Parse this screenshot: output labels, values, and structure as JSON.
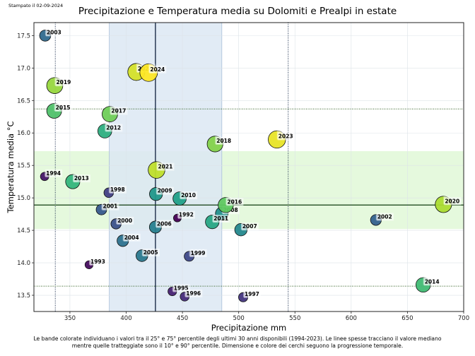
{
  "header": {
    "stamp": "Stampato il 02-09-2024"
  },
  "caption": {
    "line1": "Le bande colorate individuano i valori tra il 25° e 75° percentile degli ultimi 30 anni disponibili (1994-2023). Le linee spesse tracciano il valore mediano",
    "line2": "mentre quelle tratteggiate sono il 10° e 90° percentile. Dimensione e colore dei cerchi seguono la progressione temporale."
  },
  "chart_data": {
    "type": "scatter",
    "title": "Precipitazione e Temperatura media su Dolomiti e Prealpi in estate",
    "xlabel": "Precipitazione mm",
    "ylabel": "Temperatura media °C",
    "xlim": [
      318,
      700
    ],
    "ylim": [
      13.25,
      17.7
    ],
    "xticks": [
      350,
      400,
      450,
      500,
      550,
      600,
      650,
      700
    ],
    "yticks": [
      13.5,
      14.0,
      14.5,
      15.0,
      15.5,
      16.0,
      16.5,
      17.0,
      17.5
    ],
    "ytick_labels": [
      "13.5",
      "14.0",
      "14.5",
      "15.0",
      "15.5",
      "16.0",
      "16.5",
      "17.0",
      "17.5"
    ],
    "grid": true,
    "colormap": "viridis",
    "reference": {
      "x_p25": 385,
      "x_p75": 485,
      "x_median": 426,
      "x_p10": 337,
      "x_p90": 544,
      "y_p25": 14.52,
      "y_p75": 15.72,
      "y_median": 14.89,
      "y_p10": 13.64,
      "y_p90": 16.37,
      "x_band_color": "#dce7f3",
      "y_band_color": "#e2f8d9",
      "x_median_color": "#0d1f3c",
      "y_median_color": "#0f3d0f"
    },
    "points": [
      {
        "year": 1992,
        "x": 445.5,
        "y": 14.69
      },
      {
        "year": 1993,
        "x": 367,
        "y": 13.97
      },
      {
        "year": 1994,
        "x": 327.5,
        "y": 15.33
      },
      {
        "year": 1995,
        "x": 441,
        "y": 13.56
      },
      {
        "year": 1996,
        "x": 452,
        "y": 13.48
      },
      {
        "year": 1997,
        "x": 504,
        "y": 13.47
      },
      {
        "year": 1998,
        "x": 384.5,
        "y": 15.08
      },
      {
        "year": 1999,
        "x": 456,
        "y": 14.1
      },
      {
        "year": 2000,
        "x": 391,
        "y": 14.6
      },
      {
        "year": 2001,
        "x": 378,
        "y": 14.82
      },
      {
        "year": 2002,
        "x": 622,
        "y": 14.66
      },
      {
        "year": 2003,
        "x": 328,
        "y": 17.5
      },
      {
        "year": 2004,
        "x": 397,
        "y": 14.34
      },
      {
        "year": 2005,
        "x": 414,
        "y": 14.11
      },
      {
        "year": 2006,
        "x": 426,
        "y": 14.55
      },
      {
        "year": 2007,
        "x": 502,
        "y": 14.51
      },
      {
        "year": 2008,
        "x": 485,
        "y": 14.76
      },
      {
        "year": 2009,
        "x": 426.5,
        "y": 15.06
      },
      {
        "year": 2010,
        "x": 447.5,
        "y": 14.99
      },
      {
        "year": 2011,
        "x": 476.5,
        "y": 14.63
      },
      {
        "year": 2012,
        "x": 381,
        "y": 16.03
      },
      {
        "year": 2013,
        "x": 352.5,
        "y": 15.25
      },
      {
        "year": 2014,
        "x": 664,
        "y": 13.66
      },
      {
        "year": 2015,
        "x": 336,
        "y": 16.34
      },
      {
        "year": 2016,
        "x": 488.5,
        "y": 14.89
      },
      {
        "year": 2017,
        "x": 385.5,
        "y": 16.29
      },
      {
        "year": 2018,
        "x": 479,
        "y": 15.83
      },
      {
        "year": 2019,
        "x": 336.5,
        "y": 16.73
      },
      {
        "year": 2020,
        "x": 682,
        "y": 14.9
      },
      {
        "year": 2021,
        "x": 427,
        "y": 15.43
      },
      {
        "year": 2022,
        "x": 409,
        "y": 16.94
      },
      {
        "year": 2023,
        "x": 534,
        "y": 15.9
      },
      {
        "year": 2024,
        "x": 420,
        "y": 16.93
      }
    ]
  }
}
